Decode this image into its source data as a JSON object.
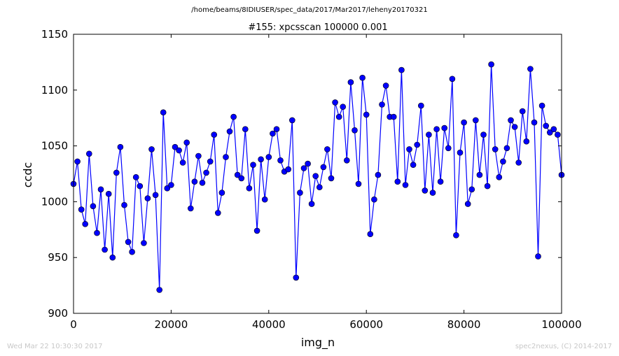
{
  "header": {
    "path": "/home/beams/8IDIUSER/spec_data/2017/Mar2017/leheny20170321"
  },
  "footer": {
    "timestamp": "Wed Mar 22 10:30:30 2017",
    "credit": "spec2nexus, (C) 2014-2017"
  },
  "chart_data": {
    "type": "line",
    "title": "#155: xpcsscan 100000 0.001",
    "xlabel": "img_n",
    "ylabel": "ccdc",
    "xlim": [
      0,
      100000
    ],
    "ylim": [
      900,
      1150
    ],
    "xticks": [
      0,
      20000,
      40000,
      60000,
      80000,
      100000
    ],
    "yticks": [
      900,
      950,
      1000,
      1050,
      1100,
      1150
    ],
    "grid": false,
    "color": "#0000ff",
    "markers": true,
    "series": [
      {
        "x": [
          0,
          800,
          1600,
          2400,
          3200,
          4000,
          4800,
          5600,
          6400,
          7200,
          8000,
          8800,
          9600,
          10400,
          11200,
          12000,
          12800,
          13600,
          14400,
          15200,
          16000,
          16800,
          17600,
          18400,
          19200,
          20000,
          20800,
          21600,
          22400,
          23200,
          24000,
          24800,
          25600,
          26400,
          27200,
          28000,
          28800,
          29600,
          30400,
          31200,
          32000,
          32800,
          33600,
          34400,
          35200,
          36000,
          36800,
          37600,
          38400,
          39200,
          40000,
          40800,
          41600,
          42400,
          43200,
          44000,
          44800,
          45600,
          46400,
          47200,
          48000,
          48800,
          49600,
          50400,
          51200,
          52000,
          52800,
          53600,
          54400,
          55200,
          56000,
          56800,
          57600,
          58400,
          59200,
          60000,
          60800,
          61600,
          62400,
          63200,
          64000,
          64800,
          65600,
          66400,
          67200,
          68000,
          68800,
          69600,
          70400,
          71200,
          72000,
          72800,
          73600,
          74400,
          75200,
          76000,
          76800,
          77600,
          78400,
          79200,
          80000,
          80800,
          81600,
          82400,
          83200,
          84000,
          84800,
          85600,
          86400,
          87200,
          88000,
          88800,
          89600,
          90400,
          91200,
          92000,
          92800,
          93600,
          94400,
          95200,
          96000,
          96800,
          97600,
          98400,
          99200,
          100000
        ],
        "y": [
          1016,
          1036,
          993,
          980,
          1043,
          996,
          972,
          1011,
          957,
          1007,
          950,
          1026,
          1049,
          997,
          964,
          955,
          1022,
          1014,
          963,
          1003,
          1047,
          1006,
          921,
          1080,
          1012,
          1015,
          1049,
          1046,
          1035,
          1053,
          994,
          1018,
          1041,
          1017,
          1026,
          1036,
          1060,
          990,
          1008,
          1040,
          1063,
          1076,
          1024,
          1021,
          1065,
          1012,
          1033,
          974,
          1038,
          1002,
          1040,
          1061,
          1065,
          1037,
          1027,
          1029,
          1073,
          932,
          1008,
          1030,
          1034,
          998,
          1023,
          1013,
          1031,
          1047,
          1021,
          1089,
          1076,
          1085,
          1037,
          1107,
          1064,
          1016,
          1111,
          1078,
          971,
          1002,
          1024,
          1087,
          1104,
          1076,
          1076,
          1018,
          1118,
          1015,
          1047,
          1033,
          1051,
          1086,
          1010,
          1060,
          1008,
          1065,
          1018,
          1066,
          1048,
          1110,
          970,
          1044,
          1071,
          998,
          1011,
          1073,
          1024,
          1060,
          1014,
          1123,
          1047,
          1022,
          1036,
          1048,
          1073,
          1067,
          1035,
          1081,
          1054,
          1119,
          1071,
          951,
          1086,
          1068,
          1062,
          1065,
          1060,
          1024
        ]
      }
    ]
  }
}
